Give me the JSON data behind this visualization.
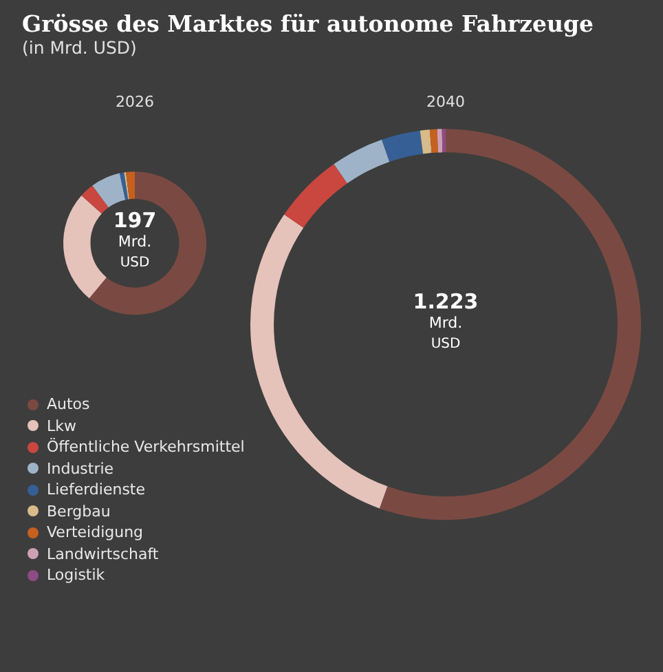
{
  "chart_data": [
    {
      "type": "other",
      "title": "Grösse des Marktes für autonome Fahrzeuge",
      "subtitle": "(in Mrd. USD)"
    },
    {
      "type": "donut",
      "categories": [
        "Autos",
        "Lkw",
        "Öffentliche Verkehrsmittel",
        "Industrie",
        "Lieferdienste",
        "Bergbau",
        "Verteidigung",
        "Landwirtschaft",
        "Logistik"
      ],
      "colors": [
        "#7a4a42",
        "#e5c3bb",
        "#c9473f",
        "#9fb3c8",
        "#365f95",
        "#d7bb8a",
        "#c5601e",
        "#cfa0b3",
        "#8e4b85"
      ],
      "series": [
        {
          "name": "2026",
          "values": [
            61,
            25.6,
            3.3,
            6.7,
            1,
            0.4,
            2,
            0,
            0
          ]
        },
        {
          "name": "2040",
          "values": [
            55.5,
            29,
            5.8,
            4.4,
            3.2,
            0.8,
            0.6,
            0.4,
            0.3
          ]
        }
      ],
      "annotations": [
        "197 Mrd. USD",
        "1.223 Mrd. USD"
      ],
      "legend": "bottom left"
    }
  ]
}
